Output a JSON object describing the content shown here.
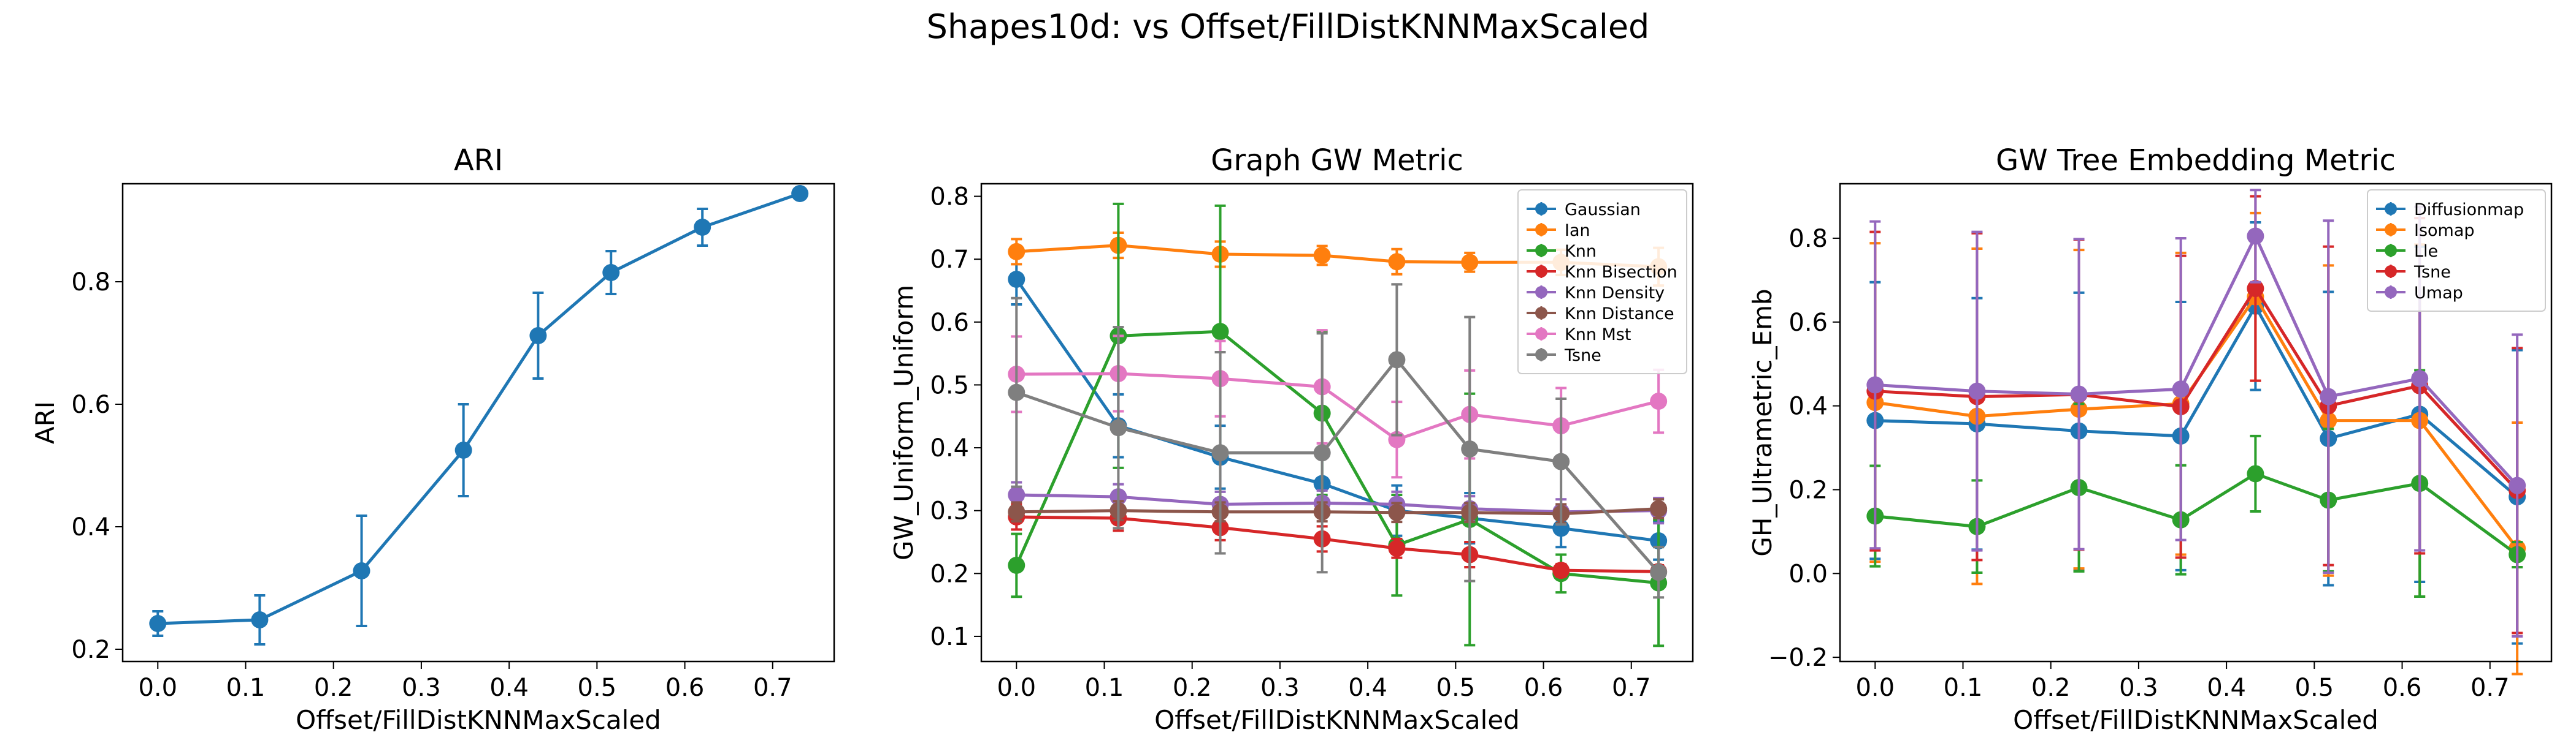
{
  "suptitle": "Shapes10d: vs Offset/FillDistKNNMaxScaled",
  "chart_data": [
    {
      "type": "line",
      "title": "ARI",
      "xlabel": "Offset/FillDistKNNMaxScaled",
      "ylabel": "ARI",
      "xlim": [
        -0.04,
        0.77
      ],
      "ylim": [
        0.18,
        0.96
      ],
      "xticks": [
        0.0,
        0.1,
        0.2,
        0.3,
        0.4,
        0.5,
        0.6,
        0.7
      ],
      "xtick_labels": [
        "0.0",
        "0.1",
        "0.2",
        "0.3",
        "0.4",
        "0.5",
        "0.6",
        "0.7"
      ],
      "yticks": [
        0.2,
        0.4,
        0.6,
        0.8
      ],
      "ytick_labels": [
        "0.2",
        "0.4",
        "0.6",
        "0.8"
      ],
      "x": [
        0.0,
        0.116,
        0.232,
        0.348,
        0.433,
        0.516,
        0.62,
        0.731
      ],
      "legend": "none",
      "series": [
        {
          "color": "#1f77b4",
          "values": [
            0.242,
            0.248,
            0.328,
            0.525,
            0.712,
            0.815,
            0.889,
            0.944
          ],
          "err": [
            0.02,
            0.04,
            0.09,
            0.075,
            0.07,
            0.035,
            0.03,
            0.008
          ]
        }
      ]
    },
    {
      "type": "line",
      "title": "Graph GW Metric",
      "xlabel": "Offset/FillDistKNNMaxScaled",
      "ylabel": "GW_Uniform_Uniform",
      "xlim": [
        -0.04,
        0.77
      ],
      "ylim": [
        0.06,
        0.82
      ],
      "xticks": [
        0.0,
        0.1,
        0.2,
        0.3,
        0.4,
        0.5,
        0.6,
        0.7
      ],
      "xtick_labels": [
        "0.0",
        "0.1",
        "0.2",
        "0.3",
        "0.4",
        "0.5",
        "0.6",
        "0.7"
      ],
      "yticks": [
        0.1,
        0.2,
        0.3,
        0.4,
        0.5,
        0.6,
        0.7,
        0.8
      ],
      "ytick_labels": [
        "0.1",
        "0.2",
        "0.3",
        "0.4",
        "0.5",
        "0.6",
        "0.7",
        "0.8"
      ],
      "x": [
        0.0,
        0.116,
        0.232,
        0.348,
        0.433,
        0.516,
        0.62,
        0.731
      ],
      "legend": "upper right",
      "series": [
        {
          "name": "Gaussian",
          "color": "#1f77b4",
          "values": [
            0.668,
            0.435,
            0.385,
            0.343,
            0.3,
            0.288,
            0.272,
            0.252
          ],
          "err": [
            0.04,
            0.05,
            0.05,
            0.05,
            0.04,
            0.04,
            0.03,
            0.03
          ]
        },
        {
          "name": "Ian",
          "color": "#ff7f0e",
          "values": [
            0.712,
            0.722,
            0.708,
            0.706,
            0.696,
            0.695,
            0.695,
            0.688
          ],
          "err": [
            0.02,
            0.02,
            0.02,
            0.015,
            0.02,
            0.015,
            0.02,
            0.03
          ]
        },
        {
          "name": "Knn",
          "color": "#2ca02c",
          "values": [
            0.213,
            0.578,
            0.585,
            0.455,
            0.245,
            0.286,
            0.2,
            0.185
          ],
          "err": [
            0.05,
            0.21,
            0.2,
            0.13,
            0.08,
            0.2,
            0.03,
            0.1
          ]
        },
        {
          "name": "Knn Bisection",
          "color": "#d62728",
          "values": [
            0.29,
            0.288,
            0.273,
            0.255,
            0.24,
            0.23,
            0.205,
            0.203
          ],
          "err": [
            0.02,
            0.02,
            0.02,
            0.02,
            0.015,
            0.02,
            0.01,
            0.01
          ]
        },
        {
          "name": "Knn Density",
          "color": "#9467bd",
          "values": [
            0.325,
            0.322,
            0.31,
            0.312,
            0.31,
            0.303,
            0.298,
            0.3
          ],
          "err": [
            0.02,
            0.02,
            0.02,
            0.02,
            0.02,
            0.02,
            0.02,
            0.02
          ]
        },
        {
          "name": "Knn Distance",
          "color": "#8c564b",
          "values": [
            0.298,
            0.3,
            0.298,
            0.298,
            0.297,
            0.297,
            0.295,
            0.303
          ],
          "err": [
            0.015,
            0.015,
            0.015,
            0.015,
            0.015,
            0.015,
            0.015,
            0.015
          ]
        },
        {
          "name": "Knn Mst",
          "color": "#e377c2",
          "values": [
            0.517,
            0.518,
            0.51,
            0.497,
            0.413,
            0.453,
            0.435,
            0.474
          ],
          "err": [
            0.06,
            0.06,
            0.06,
            0.09,
            0.06,
            0.07,
            0.06,
            0.05
          ]
        },
        {
          "name": "Tsne",
          "color": "#7f7f7f",
          "values": [
            0.488,
            0.432,
            0.392,
            0.392,
            0.54,
            0.398,
            0.378,
            0.202
          ],
          "err": [
            0.15,
            0.16,
            0.16,
            0.19,
            0.12,
            0.21,
            0.1,
            0.04
          ]
        }
      ]
    },
    {
      "type": "line",
      "title": "GW Tree Embedding Metric",
      "xlabel": "Offset/FillDistKNNMaxScaled",
      "ylabel": "GH_Ultrametric_Emb",
      "xlim": [
        -0.04,
        0.77
      ],
      "ylim": [
        -0.21,
        0.93
      ],
      "xticks": [
        0.0,
        0.1,
        0.2,
        0.3,
        0.4,
        0.5,
        0.6,
        0.7
      ],
      "xtick_labels": [
        "0.0",
        "0.1",
        "0.2",
        "0.3",
        "0.4",
        "0.5",
        "0.6",
        "0.7"
      ],
      "yticks": [
        -0.2,
        0.0,
        0.2,
        0.4,
        0.6,
        0.8
      ],
      "ytick_labels": [
        "−0.2",
        "0.0",
        "0.2",
        "0.4",
        "0.6",
        "0.8"
      ],
      "x": [
        0.0,
        0.116,
        0.232,
        0.348,
        0.433,
        0.516,
        0.62,
        0.731
      ],
      "legend": "upper right",
      "series": [
        {
          "name": "Diffusionmap",
          "color": "#1f77b4",
          "values": [
            0.365,
            0.357,
            0.34,
            0.328,
            0.638,
            0.322,
            0.38,
            0.183
          ],
          "err": [
            0.33,
            0.3,
            0.33,
            0.32,
            0.2,
            0.35,
            0.4,
            0.35
          ]
        },
        {
          "name": "Isomap",
          "color": "#ff7f0e",
          "values": [
            0.408,
            0.375,
            0.392,
            0.405,
            0.66,
            0.365,
            0.365,
            0.06
          ],
          "err": [
            0.38,
            0.4,
            0.38,
            0.36,
            0.2,
            0.37,
            0.42,
            0.3
          ]
        },
        {
          "name": "Lle",
          "color": "#2ca02c",
          "values": [
            0.137,
            0.112,
            0.205,
            0.128,
            0.238,
            0.175,
            0.215,
            0.045
          ],
          "err": [
            0.12,
            0.11,
            0.2,
            0.13,
            0.09,
            0.17,
            0.27,
            0.03
          ]
        },
        {
          "name": "Tsne",
          "color": "#d62728",
          "values": [
            0.435,
            0.422,
            0.427,
            0.398,
            0.68,
            0.4,
            0.448,
            0.198
          ],
          "err": [
            0.38,
            0.39,
            0.37,
            0.36,
            0.22,
            0.38,
            0.4,
            0.34
          ]
        },
        {
          "name": "Umap",
          "color": "#9467bd",
          "values": [
            0.45,
            0.435,
            0.428,
            0.44,
            0.805,
            0.422,
            0.465,
            0.21
          ],
          "err": [
            0.39,
            0.38,
            0.37,
            0.36,
            0.11,
            0.42,
            0.41,
            0.36
          ]
        }
      ]
    }
  ]
}
